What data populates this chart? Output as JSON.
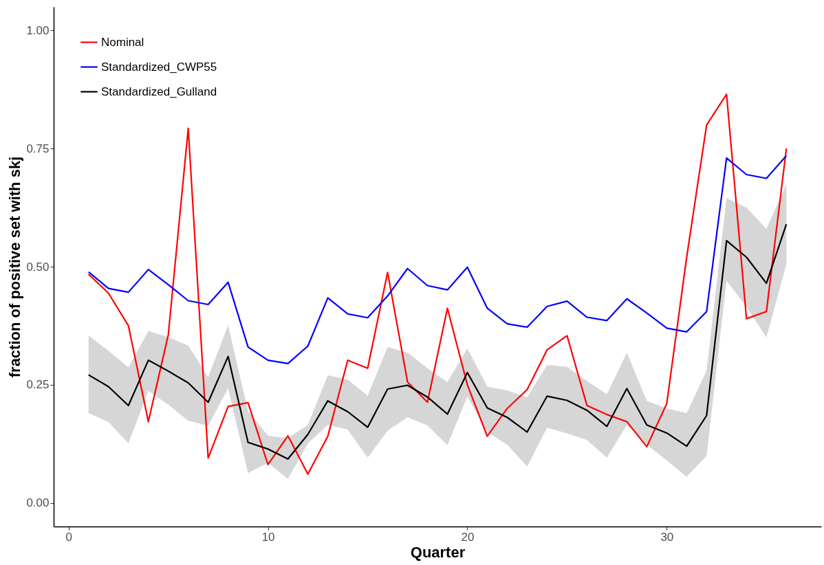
{
  "chart_data": {
    "type": "line",
    "xlabel": "Quarter",
    "ylabel": "fraction of positive set with skj",
    "x": [
      1,
      2,
      3,
      4,
      5,
      6,
      7,
      8,
      9,
      10,
      11,
      12,
      13,
      14,
      15,
      16,
      17,
      18,
      19,
      20,
      21,
      22,
      23,
      24,
      25,
      26,
      27,
      28,
      29,
      30,
      31,
      32,
      33,
      34,
      35,
      36
    ],
    "series": [
      {
        "name": "Nominal",
        "color": "#ff0000",
        "values": [
          0.484,
          0.444,
          0.375,
          0.172,
          0.356,
          0.793,
          0.095,
          0.204,
          0.212,
          0.081,
          0.142,
          0.061,
          0.141,
          0.302,
          0.285,
          0.488,
          0.256,
          0.213,
          0.412,
          0.25,
          0.141,
          0.2,
          0.24,
          0.324,
          0.354,
          0.206,
          0.187,
          0.172,
          0.119,
          0.21,
          0.52,
          0.8,
          0.865,
          0.39,
          0.405,
          0.75
        ]
      },
      {
        "name": "Standardized_CWP55",
        "color": "#0000ff",
        "values": [
          0.489,
          0.454,
          0.446,
          0.494,
          0.462,
          0.428,
          0.42,
          0.467,
          0.33,
          0.302,
          0.295,
          0.332,
          0.434,
          0.4,
          0.392,
          0.438,
          0.496,
          0.46,
          0.451,
          0.499,
          0.412,
          0.379,
          0.372,
          0.416,
          0.427,
          0.393,
          0.386,
          0.432,
          0.402,
          0.37,
          0.362,
          0.405,
          0.73,
          0.695,
          0.687,
          0.735
        ]
      },
      {
        "name": "Standardized_Gulland",
        "color": "#000000",
        "values": [
          0.271,
          0.246,
          0.206,
          0.302,
          0.279,
          0.254,
          0.213,
          0.31,
          0.128,
          0.114,
          0.093,
          0.145,
          0.216,
          0.193,
          0.16,
          0.241,
          0.249,
          0.224,
          0.188,
          0.276,
          0.201,
          0.181,
          0.15,
          0.226,
          0.217,
          0.196,
          0.162,
          0.242,
          0.165,
          0.148,
          0.12,
          0.185,
          0.555,
          0.52,
          0.465,
          0.59
        ],
        "lower": [
          0.19,
          0.171,
          0.126,
          0.237,
          0.208,
          0.174,
          0.163,
          0.243,
          0.063,
          0.085,
          0.051,
          0.126,
          0.165,
          0.155,
          0.096,
          0.153,
          0.181,
          0.164,
          0.122,
          0.225,
          0.15,
          0.123,
          0.077,
          0.159,
          0.147,
          0.133,
          0.096,
          0.165,
          0.123,
          0.09,
          0.055,
          0.1,
          0.47,
          0.415,
          0.35,
          0.505
        ],
        "upper": [
          0.354,
          0.322,
          0.287,
          0.364,
          0.351,
          0.333,
          0.266,
          0.376,
          0.194,
          0.142,
          0.137,
          0.165,
          0.27,
          0.261,
          0.227,
          0.33,
          0.318,
          0.285,
          0.256,
          0.327,
          0.246,
          0.238,
          0.224,
          0.292,
          0.288,
          0.258,
          0.23,
          0.318,
          0.216,
          0.2,
          0.19,
          0.28,
          0.645,
          0.625,
          0.58,
          0.675
        ]
      }
    ],
    "xlim": [
      -0.75,
      37.75
    ],
    "xticks": [
      0,
      10,
      20,
      30
    ],
    "ylim": [
      -0.05,
      1.05
    ],
    "yticks": [
      {
        "value": 0,
        "label": "0.00"
      },
      {
        "value": 0.25,
        "label": "0.25"
      },
      {
        "value": 0.5,
        "label": "0.50"
      },
      {
        "value": 0.75,
        "label": "0.75"
      },
      {
        "value": 1,
        "label": "1.00"
      }
    ],
    "grid": false,
    "legend": "top left",
    "line_style": "solid",
    "marker": "none"
  }
}
